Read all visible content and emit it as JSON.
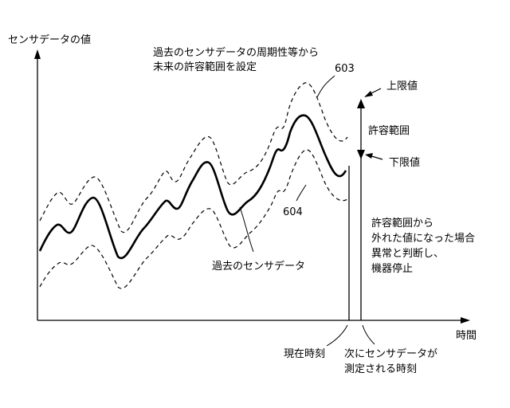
{
  "y_axis_label": "センサデータの値",
  "x_axis_label": "時間",
  "annotation_top": [
    "過去のセンサデータの周期性等から",
    "未来の許容範囲を設定"
  ],
  "ref_upper": "603",
  "ref_lower": "604",
  "upper_limit_label": "上限値",
  "lower_limit_label": "下限値",
  "range_label": "許容範囲",
  "past_data_label": "過去のセンサデータ",
  "anomaly_note": [
    "許容範囲から",
    "外れた値になった場合",
    "異常と判断し、",
    "機器停止"
  ],
  "current_time_label": "現在時刻",
  "next_time_label": [
    "次にセンサデータが",
    "測定される時刻"
  ]
}
